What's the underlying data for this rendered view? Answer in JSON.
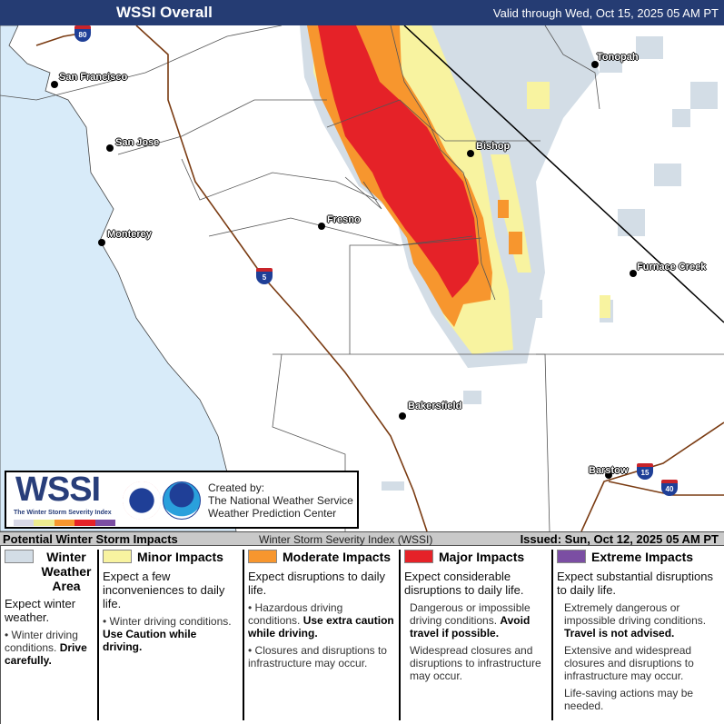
{
  "header": {
    "title": "WSSI Overall",
    "valid": "Valid through Wed, Oct 15, 2025 05 AM PT"
  },
  "colors": {
    "winter": "#d3dde6",
    "minor": "#f8f3a0",
    "moderate": "#f7962e",
    "major": "#e52228",
    "extreme": "#7b4ea3",
    "ocean": "#d8ebf9",
    "header": "#253c73"
  },
  "cities": [
    {
      "name": "San Francisco"
    },
    {
      "name": "San Jose"
    },
    {
      "name": "Monterey"
    },
    {
      "name": "Fresno"
    },
    {
      "name": "Bishop"
    },
    {
      "name": "Tonopah"
    },
    {
      "name": "Furnace Creek"
    },
    {
      "name": "Bakersfield"
    },
    {
      "name": "Barstow"
    }
  ],
  "highways": [
    "80",
    "5",
    "15",
    "40"
  ],
  "logo": {
    "wordmark": "WSSI",
    "subtitle": "The Winter Storm Severity Index",
    "created_by": "Created by:",
    "org1": "The National Weather Service",
    "org2": "Weather Prediction Center"
  },
  "status_bar": {
    "left": "Potential Winter Storm Impacts",
    "center": "Winter Storm Severity Index (WSSI)",
    "right": "Issued: Sun, Oct 12, 2025 05 AM PT"
  },
  "legend": [
    {
      "title": "Winter Weather Area",
      "headline": "Expect winter weather.",
      "b1": "Winter driving conditions.",
      "b1b": "Drive carefully.",
      "b2": ""
    },
    {
      "title": "Minor Impacts",
      "headline": "Expect a few inconveniences to daily life.",
      "b1": "Winter driving conditions.",
      "b1b": "Use Caution while driving.",
      "b2": ""
    },
    {
      "title": "Moderate Impacts",
      "headline": "Expect disruptions to daily life.",
      "b1": "Hazardous driving conditions.",
      "b1b": "Use extra caution while driving.",
      "b2": "Closures and disruptions to infrastructure may occur."
    },
    {
      "title": "Major Impacts",
      "headline": "Expect considerable disruptions to daily life.",
      "b1": "Dangerous or impossible driving conditions.",
      "b1b": "Avoid travel if possible.",
      "b2": "Widespread closures and disruptions to infrastructure may occur."
    },
    {
      "title": "Extreme Impacts",
      "headline": "Expect substantial disruptions to daily life.",
      "b1": "Extremely dangerous or impossible driving conditions.",
      "b1b": "Travel is not advised.",
      "b2": "Extensive and widespread closures and disruptions to infrastructure may occur.",
      "b3": "Life-saving actions may be needed."
    }
  ]
}
